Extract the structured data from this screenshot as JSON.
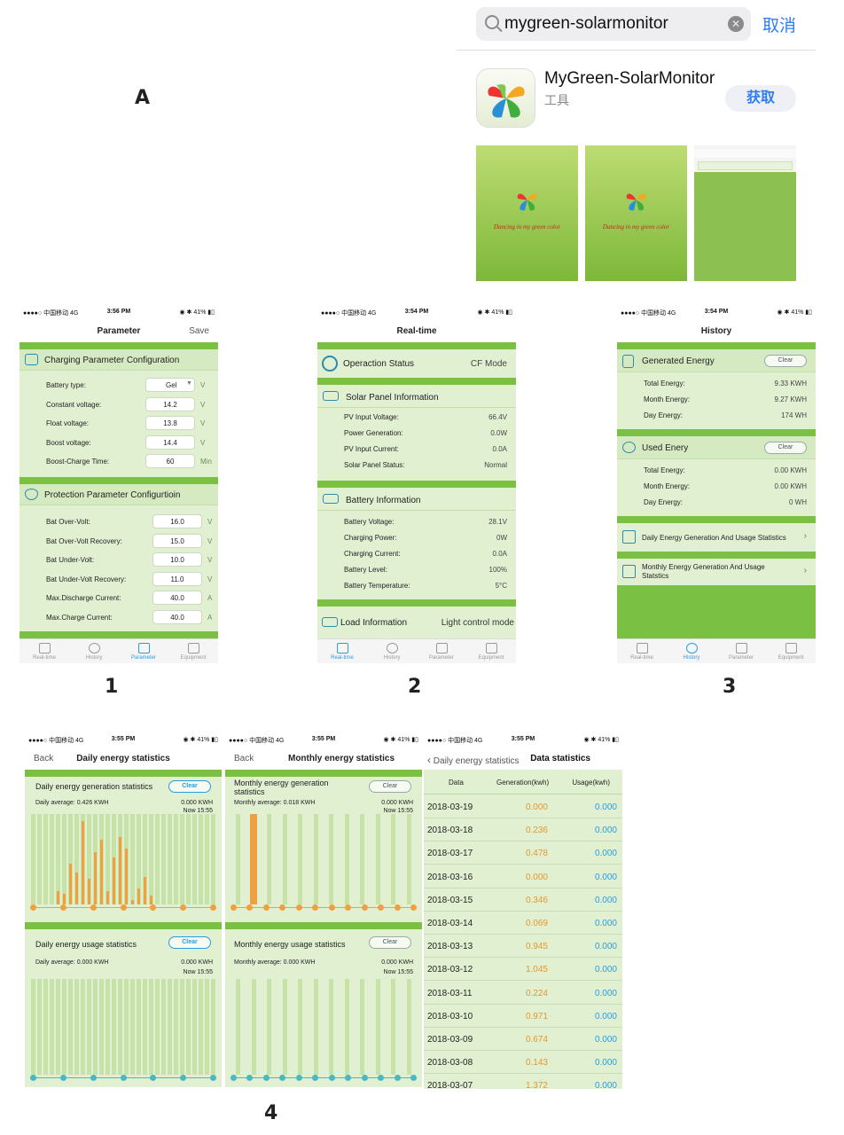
{
  "labels": {
    "a": "A",
    "s1": "1",
    "s2": "2",
    "s3": "3",
    "s4": "4"
  },
  "appstore": {
    "search_value": "mygreen-solarmonitor",
    "cancel": "取消",
    "app_name": "MyGreen-SolarMonitor",
    "app_category": "工具",
    "get": "获取",
    "slogan": "Dancing in my green color"
  },
  "status": {
    "carrier": "●●●●○ 中国移动  4G",
    "battery": "◉ ✱ 41% ▮▯"
  },
  "param": {
    "time": "3:56 PM",
    "title": "Parameter",
    "save": "Save",
    "charging_title": "Charging Parameter Configuration",
    "charging": [
      {
        "k": "Battery type:",
        "v": "Gel",
        "u": "V"
      },
      {
        "k": "Constant voltage:",
        "v": "14.2",
        "u": "V"
      },
      {
        "k": "Float voltage:",
        "v": "13.8",
        "u": "V"
      },
      {
        "k": "Boost voltage:",
        "v": "14.4",
        "u": "V"
      },
      {
        "k": "Boost-Charge Time:",
        "v": "60",
        "u": "Min"
      }
    ],
    "protect_title": "Protection Parameter Configurtioin",
    "protect": [
      {
        "k": "Bat Over-Volt:",
        "v": "16.0",
        "u": "V"
      },
      {
        "k": "Bat Over-Volt Recovery:",
        "v": "15.0",
        "u": "V"
      },
      {
        "k": "Bat Under-Volt:",
        "v": "10.0",
        "u": "V"
      },
      {
        "k": "Bat Under-Volt Recovery:",
        "v": "11.0",
        "u": "V"
      },
      {
        "k": "Max.Discharge Current:",
        "v": "40.0",
        "u": "A"
      },
      {
        "k": "Max.Charge Current:",
        "v": "40.0",
        "u": "A"
      }
    ]
  },
  "tabs": [
    "Real-time",
    "History",
    "Parameter",
    "Equipment"
  ],
  "realtime": {
    "time": "3:54 PM",
    "title": "Real-time",
    "op_label": "Operaction Status",
    "op_value": "CF Mode",
    "solar_title": "Solar Panel Information",
    "solar": [
      {
        "k": "PV Input Voltage:",
        "v": "66.4V"
      },
      {
        "k": "Power Generation:",
        "v": "0.0W"
      },
      {
        "k": "PV Input Current:",
        "v": "0.0A"
      },
      {
        "k": "Solar Panel Status:",
        "v": "Normal"
      }
    ],
    "battery_title": "Battery Information",
    "battery": [
      {
        "k": "Battery Voltage:",
        "v": "28.1V"
      },
      {
        "k": "Charging Power:",
        "v": "0W"
      },
      {
        "k": "Charging Current:",
        "v": "0.0A"
      },
      {
        "k": "Battery Level:",
        "v": "100%"
      },
      {
        "k": "Battery Temperature:",
        "v": "5°C"
      }
    ],
    "load_title": "Load Information",
    "load_value": "Light control mode"
  },
  "history": {
    "time": "3:54 PM",
    "title": "History",
    "gen_title": "Generated Energy",
    "clear": "Clear",
    "gen": [
      {
        "k": "Total Energy:",
        "v": "9.33 KWH"
      },
      {
        "k": "Month Energy:",
        "v": "9.27 KWH"
      },
      {
        "k": "Day Energy:",
        "v": "174 WH"
      }
    ],
    "used_title": "Used Enery",
    "used": [
      {
        "k": "Total Energy:",
        "v": "0.00 KWH"
      },
      {
        "k": "Month Energy:",
        "v": "0.00 KWH"
      },
      {
        "k": "Day Energy:",
        "v": "0 WH"
      }
    ],
    "daily_link": "Daily Energy Generation And Usage Statistics",
    "monthly_link": "Monthly Energy Generation And Usage Statstics"
  },
  "daily": {
    "time": "3:55 PM",
    "back": "Back",
    "title": "Daily energy statistics",
    "gen_title": "Daily energy generation statistics",
    "gen_avg": "Daily average: 0.426 KWH",
    "gen_val": "0.000 KWH",
    "now": "Now 15:55",
    "use_title": "Daily energy usage statistics",
    "use_avg": "Daily average: 0.000 KWH",
    "use_val": "0.000 KWH",
    "clear": "Clear",
    "gen_bars": [
      0,
      0,
      0,
      0,
      0.15,
      0.12,
      0.45,
      0.35,
      0.92,
      0.28,
      0.58,
      0.72,
      0.15,
      0.52,
      0.75,
      0.62,
      0.05,
      0.18,
      0.3,
      0.1,
      0,
      0,
      0,
      0,
      0,
      0,
      0,
      0,
      0,
      0
    ]
  },
  "monthly": {
    "time": "3:55 PM",
    "back": "Back",
    "title": "Monthly energy statistics",
    "gen_title": "Monthly energy generation statistics",
    "gen_avg": "Monthly average: 0.018 KWH",
    "gen_val": "0.000 KWH",
    "now": "Now 15:55",
    "use_title": "Monthly energy usage statistics",
    "use_avg": "Monthly average: 0.000 KWH",
    "use_val": "0.000 KWH",
    "clear": "Clear",
    "gen_bars": [
      0,
      1,
      0,
      0,
      0,
      0,
      0,
      0,
      0,
      0,
      0,
      0
    ]
  },
  "datastats": {
    "time": "3:55 PM",
    "back": "Daily energy statistics",
    "title": "Data statistics",
    "headers": [
      "Data",
      "Generation(kwh)",
      "Usage(kwh)"
    ],
    "rows": [
      [
        "2018-03-19",
        "0.000",
        "0.000"
      ],
      [
        "2018-03-18",
        "0.236",
        "0.000"
      ],
      [
        "2018-03-17",
        "0.478",
        "0.000"
      ],
      [
        "2018-03-16",
        "0.000",
        "0.000"
      ],
      [
        "2018-03-15",
        "0.346",
        "0.000"
      ],
      [
        "2018-03-14",
        "0.069",
        "0.000"
      ],
      [
        "2018-03-13",
        "0.945",
        "0.000"
      ],
      [
        "2018-03-12",
        "1.045",
        "0.000"
      ],
      [
        "2018-03-11",
        "0.224",
        "0.000"
      ],
      [
        "2018-03-10",
        "0.971",
        "0.000"
      ],
      [
        "2018-03-09",
        "0.674",
        "0.000"
      ],
      [
        "2018-03-08",
        "0.143",
        "0.000"
      ],
      [
        "2018-03-07",
        "1.372",
        "0.000"
      ]
    ]
  },
  "colors": {
    "green": "#7ac043",
    "panel": "#e2f0d2",
    "accent": "#2b9be0",
    "orange": "#f0a040"
  }
}
